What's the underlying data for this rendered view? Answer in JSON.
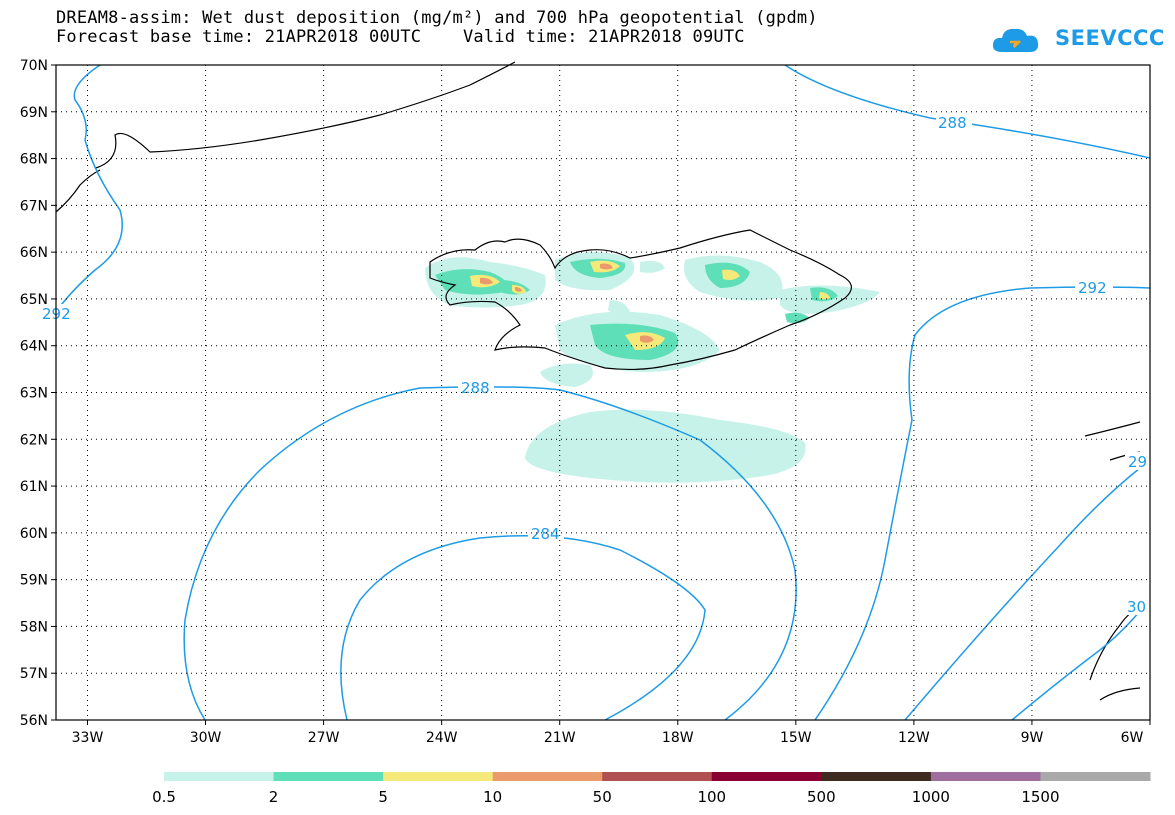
{
  "title": {
    "line1": "DREAM8-assim: Wet dust deposition (mg/m²) and 700 hPa geopotential (gpdm)",
    "line2": "Forecast base time: 21APR2018 00UTC    Valid time: 21APR2018 09UTC"
  },
  "logo": {
    "text": "SEEVCCC",
    "icon": "cloud-icon"
  },
  "axes": {
    "lat_labels": [
      "70N",
      "69N",
      "68N",
      "67N",
      "66N",
      "65N",
      "64N",
      "63N",
      "62N",
      "61N",
      "60N",
      "59N",
      "58N",
      "57N",
      "56N"
    ],
    "lon_labels": [
      "33W",
      "30W",
      "27W",
      "24W",
      "21W",
      "18W",
      "15W",
      "12W",
      "9W",
      "6W"
    ]
  },
  "contour_labels": [
    "288",
    "292",
    "288",
    "284",
    "29",
    "292",
    "30"
  ],
  "colorbar": {
    "colors": [
      "#c6f2ea",
      "#5fdfb8",
      "#f5e97a",
      "#eb9a6c",
      "#b05050",
      "#8b0033",
      "#3d2b1f",
      "#9e6e9e",
      "#a9a9a9"
    ],
    "labels": [
      "0.5",
      "2",
      "5",
      "10",
      "50",
      "100",
      "500",
      "1000",
      "1500"
    ]
  },
  "colors": {
    "contour": "#1e9be6",
    "coast": "#000000"
  }
}
